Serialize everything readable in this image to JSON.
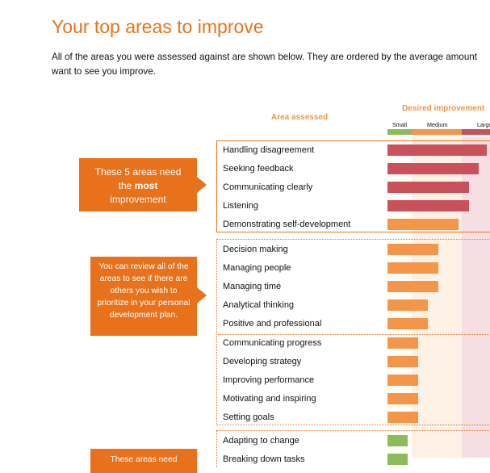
{
  "title": "Your top areas to improve",
  "intro": "All of the areas you were assessed against are shown below. They are ordered by the average amount\nwant to see you improve.",
  "headers": {
    "area_assessed": "Area assessed",
    "desired_improvement": "Desired improvement"
  },
  "scale": {
    "small": "Small",
    "medium": "Medium",
    "large": "Large"
  },
  "colors": {
    "accent": "#e8721c",
    "large_bar": "#c9515b",
    "medium_bar": "#f4964a",
    "small_bar": "#8dba5b"
  },
  "callouts": {
    "most": {
      "line1": "These 5 areas need",
      "line2_pre": "the ",
      "line2_bold": "most",
      "line3": "improvement"
    },
    "review": "You can review all of the areas to see if there are others you wish to prioritize in your personal development plan.",
    "least": "These areas need"
  },
  "chart_data": {
    "type": "bar",
    "scale": [
      "Small",
      "Medium",
      "Large"
    ],
    "groups": [
      {
        "items": [
          {
            "label": "Handling disagreement",
            "value": 0.88,
            "level": "large"
          },
          {
            "label": "Seeking feedback",
            "value": 0.81,
            "level": "large"
          },
          {
            "label": "Communicating clearly",
            "value": 0.72,
            "level": "large"
          },
          {
            "label": "Listening",
            "value": 0.72,
            "level": "large"
          },
          {
            "label": "Demonstrating self-development",
            "value": 0.63,
            "level": "medium"
          }
        ]
      },
      {
        "items": [
          {
            "label": "Decision making",
            "value": 0.45,
            "level": "medium"
          },
          {
            "label": "Managing people",
            "value": 0.45,
            "level": "medium"
          },
          {
            "label": "Managing time",
            "value": 0.45,
            "level": "medium"
          },
          {
            "label": "Analytical thinking",
            "value": 0.36,
            "level": "medium"
          },
          {
            "label": "Positive and professional",
            "value": 0.36,
            "level": "medium"
          },
          {
            "label": "Communicating progress",
            "value": 0.27,
            "level": "medium"
          },
          {
            "label": "Developing strategy",
            "value": 0.27,
            "level": "medium"
          },
          {
            "label": "Improving performance",
            "value": 0.27,
            "level": "medium"
          },
          {
            "label": "Motivating and inspiring",
            "value": 0.27,
            "level": "medium"
          },
          {
            "label": "Setting goals",
            "value": 0.27,
            "level": "medium"
          }
        ]
      },
      {
        "items": [
          {
            "label": "Adapting to change",
            "value": 0.18,
            "level": "small"
          },
          {
            "label": "Breaking down tasks",
            "value": 0.18,
            "level": "small"
          }
        ]
      }
    ]
  }
}
